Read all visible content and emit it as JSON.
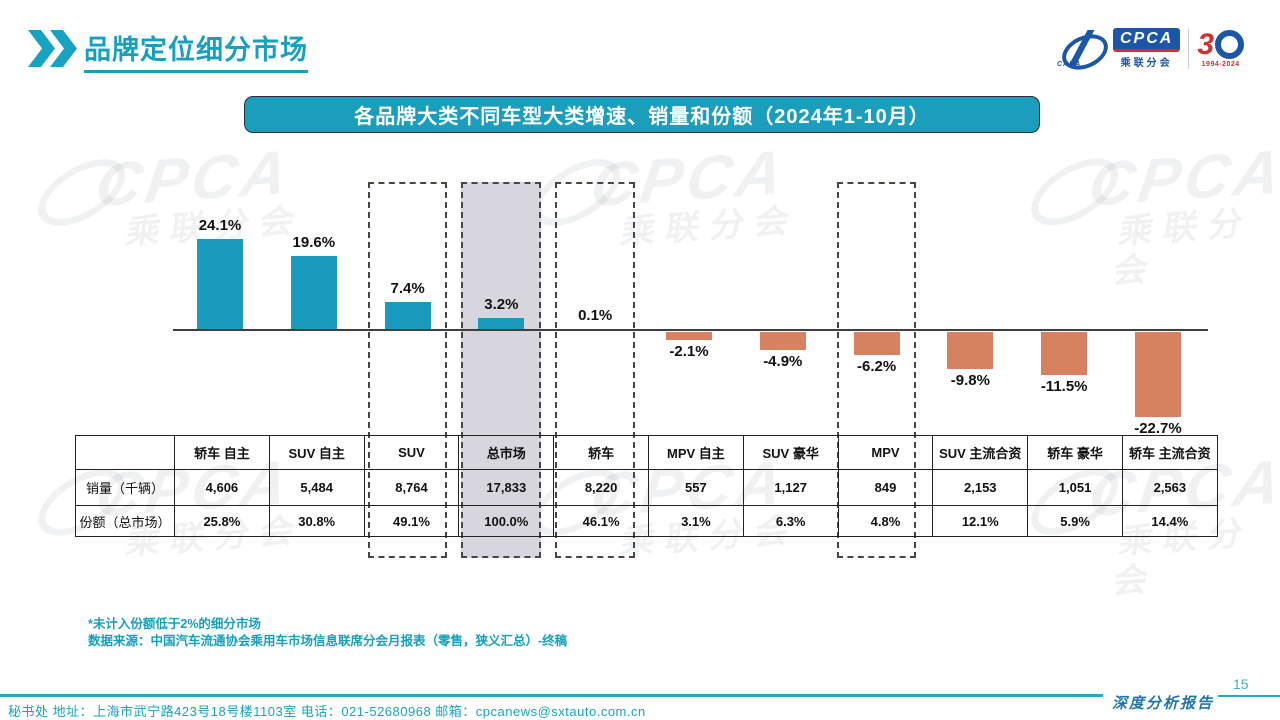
{
  "header": {
    "title": "品牌定位细分市场"
  },
  "logo": {
    "cpca": "CPCA",
    "cada": "CADA",
    "sub": "乘联分会",
    "thirty": "3",
    "years": "1994-2024"
  },
  "banner": {
    "title": "各品牌大类不同车型大类增速、销量和份额（2024年1-10月）"
  },
  "chart_data": {
    "type": "bar",
    "title": "各品牌大类不同车型大类增速、销量和份额（2024年1-10月）",
    "unit": "%",
    "categories": [
      "轿车 自主",
      "SUV 自主",
      "SUV",
      "总市场",
      "轿车",
      "MPV 自主",
      "SUV 豪华",
      "MPV",
      "SUV 主流合资",
      "轿车 豪华",
      "轿车 主流合资"
    ],
    "series": [
      {
        "name": "增速",
        "values": [
          24.1,
          19.6,
          7.4,
          3.2,
          0.1,
          -2.1,
          -4.9,
          -6.2,
          -9.8,
          -11.5,
          -22.7
        ]
      }
    ],
    "value_labels": [
      "24.1%",
      "19.6%",
      "7.4%",
      "3.2%",
      "0.1%",
      "-2.1%",
      "-4.9%",
      "-6.2%",
      "-9.8%",
      "-11.5%",
      "-22.7%"
    ],
    "positive_color": "#1A9ABD",
    "negative_color": "#D6815F",
    "highlight_columns": [
      2,
      3,
      4,
      7
    ],
    "shaded_column": 3,
    "axis": {
      "zero_line": true,
      "gridlines": false
    },
    "table": {
      "rows": [
        {
          "label": "销量（千辆）",
          "values": [
            "4,606",
            "5,484",
            "8,764",
            "17,833",
            "8,220",
            "557",
            "1,127",
            "849",
            "2,153",
            "1,051",
            "2,563"
          ]
        },
        {
          "label": "份额（总市场）",
          "values": [
            "25.8%",
            "30.8%",
            "49.1%",
            "100.0%",
            "46.1%",
            "3.1%",
            "6.3%",
            "4.8%",
            "12.1%",
            "5.9%",
            "14.4%"
          ]
        }
      ]
    }
  },
  "footnotes": {
    "line1": "*未计入份额低于2%的细分市场",
    "line2": "数据来源：中国汽车流通协会乘用车市场信息联席分会月报表（零售，狭义汇总）-终稿"
  },
  "footer": {
    "contact": "秘书处  地址：上海市武宁路423号18号楼1103室 电话：021-52680968   邮箱：cpcanews@sxtauto.com.cn",
    "page_number": "15",
    "report_label": "深度分析报告"
  },
  "watermark": {
    "word": "CPCA",
    "sub": "乘联分会"
  }
}
